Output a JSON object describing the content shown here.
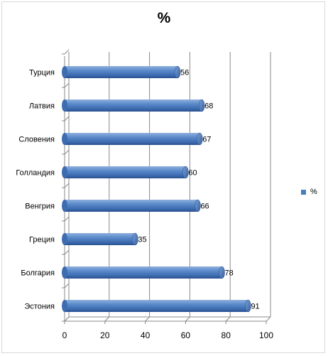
{
  "chart_data": {
    "type": "bar",
    "orientation": "horizontal",
    "title": "%",
    "categories": [
      "Турция",
      "Латвия",
      "Словения",
      "Голландия",
      "Венгрия",
      "Греция",
      "Болгария",
      "Эстония"
    ],
    "series": [
      {
        "name": "%",
        "values": [
          56,
          68,
          67,
          60,
          66,
          35,
          78,
          91
        ],
        "color": "#4a7ebb"
      }
    ],
    "xlim": [
      0,
      100
    ],
    "xticks": [
      0,
      20,
      40,
      60,
      80,
      100
    ],
    "grid": true,
    "legend": "right",
    "data_labels": true,
    "style": "3d-cylinder"
  }
}
